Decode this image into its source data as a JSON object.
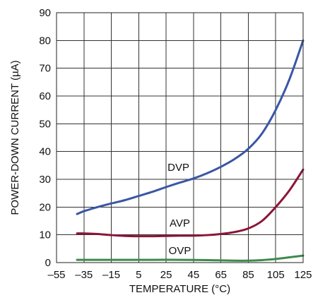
{
  "chart_data": {
    "type": "line",
    "xlabel": "TEMPERATURE (°C)",
    "ylabel": "POWER-DOWN CURRENT (µA)",
    "xlim": [
      -55,
      125
    ],
    "ylim": [
      0,
      90
    ],
    "xticks": [
      -55,
      -35,
      -15,
      5,
      25,
      45,
      65,
      85,
      105,
      125
    ],
    "xtick_labels": [
      "–55",
      "–35",
      "–15",
      "5",
      "25",
      "45",
      "65",
      "85",
      "105",
      "125"
    ],
    "yticks": [
      0,
      10,
      20,
      30,
      40,
      50,
      60,
      70,
      80,
      90
    ],
    "grid": true,
    "series": [
      {
        "name": "DVP",
        "color": "#3a56a5",
        "x": [
          -40,
          -35,
          -25,
          -15,
          -5,
          5,
          15,
          25,
          35,
          45,
          55,
          65,
          75,
          85,
          95,
          105,
          115,
          125
        ],
        "y": [
          17.5,
          18.5,
          20,
          21.3,
          22.5,
          24,
          25.5,
          27.2,
          28.8,
          30.3,
          32.2,
          34.5,
          37.3,
          41,
          46.5,
          55,
          66,
          80
        ]
      },
      {
        "name": "AVP",
        "color": "#8b1538",
        "x": [
          -40,
          -35,
          -25,
          -15,
          -5,
          5,
          15,
          25,
          35,
          45,
          55,
          65,
          75,
          85,
          95,
          105,
          115,
          125
        ],
        "y": [
          10.5,
          10.5,
          10.3,
          9.9,
          9.6,
          9.5,
          9.5,
          9.6,
          9.7,
          9.7,
          9.9,
          10.3,
          11.0,
          12.3,
          15,
          20,
          26,
          33.5
        ]
      },
      {
        "name": "OVP",
        "color": "#3d8a4c",
        "x": [
          -40,
          -25,
          -5,
          15,
          35,
          55,
          75,
          85,
          95,
          105,
          115,
          125
        ],
        "y": [
          1,
          1,
          1,
          1,
          1,
          0.9,
          0.7,
          0.7,
          0.9,
          1.3,
          1.9,
          2.5
        ]
      }
    ],
    "annotations": [
      {
        "text": "DVP",
        "x": 34,
        "y": 33
      },
      {
        "text": "AVP",
        "x": 35,
        "y": 13
      },
      {
        "text": "OVP",
        "x": 35,
        "y": 3
      }
    ]
  }
}
